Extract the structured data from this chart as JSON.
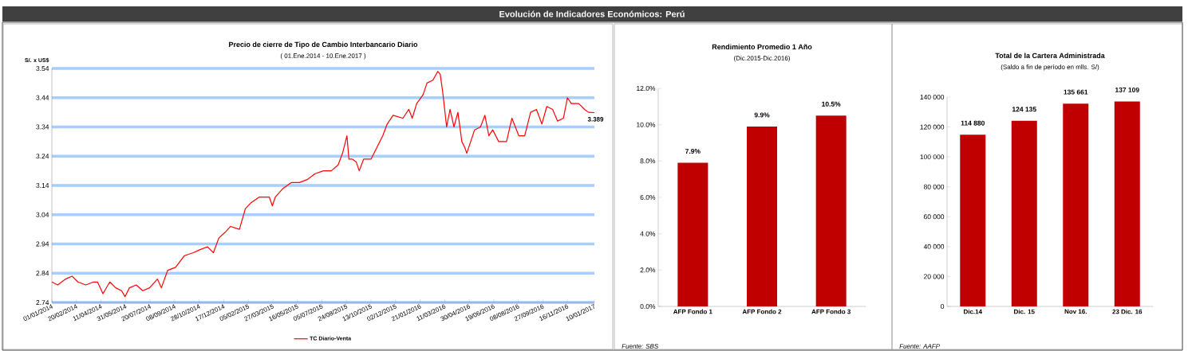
{
  "chart_data": [
    {
      "type": "other",
      "title": "Evolución de Indicadores Económicos: Perú"
    },
    {
      "type": "line",
      "title": "Precio de cierre de Tipo de Cambio Interbancario  Diario",
      "subtitle": "( 01.Ene.2014 - 10.Ene.2017 )",
      "ylabel": "S/. x US$",
      "x": [
        "2014-01-01",
        "2014-01-13",
        "2014-01-29",
        "2014-02-11",
        "2014-02-23",
        "2014-03-11",
        "2014-03-27",
        "2014-04-04",
        "2014-04-15",
        "2014-04-29",
        "2014-05-11",
        "2014-05-23",
        "2014-05-30",
        "2014-06-08",
        "2014-06-22",
        "2014-07-05",
        "2014-07-19",
        "2014-08-04",
        "2014-08-12",
        "2014-08-25",
        "2014-09-10",
        "2014-09-28",
        "2014-10-16",
        "2014-10-29",
        "2014-11-14",
        "2014-11-26",
        "2014-12-07",
        "2014-12-20",
        "2014-12-31",
        "2015-01-18",
        "2015-01-30",
        "2015-02-10",
        "2015-02-27",
        "2015-03-20",
        "2015-03-26",
        "2015-04-01",
        "2015-04-17",
        "2015-05-04",
        "2015-05-20",
        "2015-06-05",
        "2015-06-21",
        "2015-07-08",
        "2015-07-24",
        "2015-08-07",
        "2015-08-16",
        "2015-08-25",
        "2015-08-29",
        "2015-09-05",
        "2015-09-13",
        "2015-09-19",
        "2015-09-28",
        "2015-10-13",
        "2015-10-25",
        "2015-11-06",
        "2015-11-15",
        "2015-11-27",
        "2015-12-17",
        "2015-12-29",
        "2016-01-05",
        "2016-01-14",
        "2016-01-27",
        "2016-02-04",
        "2016-02-16",
        "2016-02-26",
        "2016-03-02",
        "2016-03-07",
        "2016-03-15",
        "2016-03-22",
        "2016-03-30",
        "2016-04-07",
        "2016-04-15",
        "2016-04-21",
        "2016-04-25",
        "2016-05-03",
        "2016-05-11",
        "2016-05-23",
        "2016-06-01",
        "2016-06-09",
        "2016-06-17",
        "2016-06-29",
        "2016-07-15",
        "2016-07-26",
        "2016-08-09",
        "2016-08-21",
        "2016-09-02",
        "2016-09-14",
        "2016-09-25",
        "2016-10-05",
        "2016-10-17",
        "2016-10-27",
        "2016-11-08",
        "2016-11-16",
        "2016-11-24",
        "2016-12-09",
        "2016-12-21",
        "2016-12-29",
        "2017-01-10"
      ],
      "series": [
        {
          "name": "TC Diario-Venta",
          "color": "#ff0000",
          "values": [
            2.81,
            2.8,
            2.82,
            2.83,
            2.81,
            2.8,
            2.81,
            2.81,
            2.77,
            2.81,
            2.79,
            2.78,
            2.76,
            2.79,
            2.8,
            2.78,
            2.79,
            2.82,
            2.79,
            2.85,
            2.86,
            2.9,
            2.91,
            2.92,
            2.93,
            2.91,
            2.96,
            2.98,
            3.0,
            2.99,
            3.06,
            3.08,
            3.1,
            3.1,
            3.07,
            3.1,
            3.13,
            3.15,
            3.15,
            3.16,
            3.18,
            3.19,
            3.19,
            3.21,
            3.25,
            3.31,
            3.23,
            3.23,
            3.22,
            3.19,
            3.23,
            3.23,
            3.27,
            3.31,
            3.35,
            3.38,
            3.37,
            3.4,
            3.37,
            3.42,
            3.45,
            3.49,
            3.5,
            3.53,
            3.52,
            3.46,
            3.34,
            3.4,
            3.34,
            3.39,
            3.29,
            3.27,
            3.25,
            3.29,
            3.33,
            3.34,
            3.38,
            3.31,
            3.33,
            3.29,
            3.29,
            3.37,
            3.31,
            3.31,
            3.39,
            3.4,
            3.35,
            3.41,
            3.4,
            3.36,
            3.37,
            3.44,
            3.42,
            3.42,
            3.4,
            3.39,
            3.389
          ]
        }
      ],
      "xlim": [
        "2014-01-01",
        "2017-01-10"
      ],
      "xticks": [
        {
          "value": "2014-01-01",
          "label": "01/01/2014"
        },
        {
          "value": "2014-02-20",
          "label": "20/02/2014"
        },
        {
          "value": "2014-04-11",
          "label": "11/04/2014"
        },
        {
          "value": "2014-05-31",
          "label": "31/05/2014"
        },
        {
          "value": "2014-07-20",
          "label": "20/07/2014"
        },
        {
          "value": "2014-09-08",
          "label": "08/09/2014"
        },
        {
          "value": "2014-10-28",
          "label": "28/10/2014"
        },
        {
          "value": "2014-12-17",
          "label": "17/12/2014"
        },
        {
          "value": "2015-02-05",
          "label": "05/02/2015"
        },
        {
          "value": "2015-03-27",
          "label": "27/03/2015"
        },
        {
          "value": "2015-05-16",
          "label": "16/05/2015"
        },
        {
          "value": "2015-07-05",
          "label": "05/07/2015"
        },
        {
          "value": "2015-08-24",
          "label": "24/08/2015"
        },
        {
          "value": "2015-10-13",
          "label": "13/10/2015"
        },
        {
          "value": "2015-12-02",
          "label": "02/12/2015"
        },
        {
          "value": "2016-01-21",
          "label": "21/01/2016"
        },
        {
          "value": "2016-03-11",
          "label": "11/03/2016"
        },
        {
          "value": "2016-04-30",
          "label": "30/04/2016"
        },
        {
          "value": "2016-06-19",
          "label": "19/06/2016"
        },
        {
          "value": "2016-08-08",
          "label": "08/08/2016"
        },
        {
          "value": "2016-09-27",
          "label": "27/09/2016"
        },
        {
          "value": "2016-11-16",
          "label": "16/11/2016"
        },
        {
          "value": "2017-01-10",
          "label": "10/01/2017"
        }
      ],
      "ylim": [
        2.74,
        3.54
      ],
      "yticks": [
        2.74,
        2.84,
        2.94,
        3.04,
        3.14,
        3.24,
        3.34,
        3.44,
        3.54
      ],
      "grid": "y",
      "legend": "bottom",
      "annotations": [
        {
          "text": "3.389",
          "x": "2017-01-10",
          "y": 3.389
        }
      ]
    },
    {
      "type": "bar",
      "title": "Rendimiento Promedio 1 Año",
      "subtitle": "(Dic.2015-Dic.2016)",
      "categories": [
        "AFP Fondo 1",
        "AFP Fondo 2",
        "AFP Fondo 3"
      ],
      "values": [
        7.9,
        9.9,
        10.5
      ],
      "value_labels": [
        "7.9%",
        "9.9%",
        "10.5%"
      ],
      "color": "#c00000",
      "ylim": [
        0,
        12
      ],
      "yticks": [
        {
          "value": 0,
          "label": "0.0%"
        },
        {
          "value": 2,
          "label": "2.0%"
        },
        {
          "value": 4,
          "label": "4.0%"
        },
        {
          "value": 6,
          "label": "6.0%"
        },
        {
          "value": 8,
          "label": "8.0%"
        },
        {
          "value": 10,
          "label": "10.0%"
        },
        {
          "value": 12,
          "label": "12.0%"
        }
      ],
      "annotations": [
        "Fuente: SBS"
      ]
    },
    {
      "type": "bar",
      "title": "Total de la Cartera Administrada",
      "subtitle": "(Saldo a fin de período en mlls. S/)",
      "categories": [
        "Dic.14",
        "Dic. 15",
        "Nov 16.",
        "23 Dic. 16"
      ],
      "values": [
        114880,
        124135,
        135661,
        137109
      ],
      "value_labels": [
        "114 880",
        "124 135",
        "135 661",
        "137 109"
      ],
      "color": "#c00000",
      "ylim": [
        0,
        140000
      ],
      "yticks": [
        0,
        {
          "value": 20000,
          "label": "20 000"
        },
        {
          "value": 40000,
          "label": "40 000"
        },
        {
          "value": 60000,
          "label": "60 000"
        },
        {
          "value": 80000,
          "label": "80 000"
        },
        {
          "value": 100000,
          "label": "100 000"
        },
        {
          "value": 120000,
          "label": "120 000"
        },
        {
          "value": 140000,
          "label": "140 000"
        }
      ],
      "annotations": [
        "Fuente: AAFP"
      ]
    }
  ]
}
